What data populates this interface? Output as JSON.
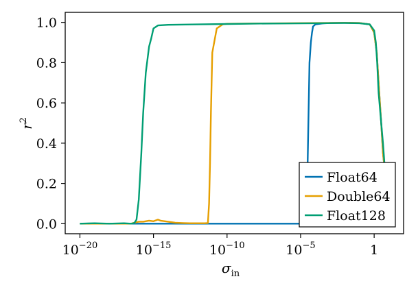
{
  "chart_data": {
    "type": "line",
    "title": "",
    "xlabel": "σ",
    "xlabel_sub": "in",
    "ylabel": "r",
    "ylabel_sup": "2",
    "xscale": "log",
    "xlim": [
      1e-21,
      100.0
    ],
    "ylim": [
      -0.05,
      1.05
    ],
    "xticks": [
      {
        "value": 1e-20,
        "base": "10",
        "exp": "−20"
      },
      {
        "value": 1e-15,
        "base": "10",
        "exp": "−15"
      },
      {
        "value": 1e-10,
        "base": "10",
        "exp": "−10"
      },
      {
        "value": 1e-05,
        "base": "10",
        "exp": "−5"
      },
      {
        "value": 1,
        "base": "1",
        "exp": ""
      }
    ],
    "yticks": [
      "0.0",
      "0.2",
      "0.4",
      "0.6",
      "0.8",
      "1.0"
    ],
    "grid": false,
    "legend_position": "bottom-right",
    "series": [
      {
        "name": "Float64",
        "color": "#0072b2",
        "x": [
          1e-20,
          1e-15,
          1e-12,
          1e-10,
          1e-08,
          1e-06,
          2e-05,
          3e-05,
          4e-05,
          5e-05,
          6e-05,
          7e-05,
          0.0001,
          0.0003,
          0.001,
          0.01,
          0.1,
          0.5,
          1,
          1.5,
          2,
          3,
          4,
          5
        ],
        "y": [
          0,
          0,
          0,
          0,
          0,
          0,
          0,
          0.3,
          0.8,
          0.9,
          0.95,
          0.98,
          0.99,
          0.995,
          0.997,
          0.998,
          0.997,
          0.99,
          0.95,
          0.85,
          0.7,
          0.5,
          0.35,
          0.28
        ]
      },
      {
        "name": "Double64",
        "color": "#e69f00",
        "x": [
          1e-20,
          1e-17,
          3e-17,
          5e-17,
          1e-16,
          2e-16,
          5e-16,
          1e-15,
          2e-15,
          3e-15,
          1e-14,
          3e-14,
          1e-13,
          3e-13,
          1e-12,
          3e-12,
          5e-12,
          6e-12,
          7e-12,
          8e-12,
          1e-11,
          2e-11,
          5e-11,
          1e-10,
          1e-08,
          1e-06,
          0.0001,
          0.01,
          0.1,
          0.5,
          1,
          1.5,
          2,
          3,
          4,
          5
        ],
        "y": [
          0,
          0,
          0,
          0.005,
          0.01,
          0.01,
          0.015,
          0.012,
          0.02,
          0.015,
          0.01,
          0.005,
          0.003,
          0.002,
          0.002,
          0.002,
          0.003,
          0.1,
          0.3,
          0.55,
          0.85,
          0.97,
          0.99,
          0.993,
          0.995,
          0.996,
          0.997,
          0.998,
          0.997,
          0.99,
          0.95,
          0.85,
          0.7,
          0.5,
          0.35,
          0.28
        ]
      },
      {
        "name": "Float128",
        "color": "#009e73",
        "x": [
          1e-20,
          1e-19,
          1e-18,
          1e-17,
          3e-17,
          5e-17,
          7e-17,
          1e-16,
          1.5e-16,
          2e-16,
          3e-16,
          5e-16,
          7e-16,
          1e-15,
          2e-15,
          1e-14,
          1e-12,
          1e-10,
          1e-08,
          1e-06,
          0.0001,
          0.01,
          0.1,
          0.5,
          1,
          1.3,
          1.6,
          2,
          3,
          4,
          5
        ],
        "y": [
          0,
          0.002,
          0,
          0.002,
          0,
          0.003,
          0.02,
          0.12,
          0.35,
          0.55,
          0.75,
          0.88,
          0.92,
          0.97,
          0.985,
          0.988,
          0.99,
          0.992,
          0.994,
          0.995,
          0.996,
          0.997,
          0.996,
          0.99,
          0.96,
          0.9,
          0.8,
          0.65,
          0.5,
          0.4,
          0.3
        ]
      }
    ]
  }
}
